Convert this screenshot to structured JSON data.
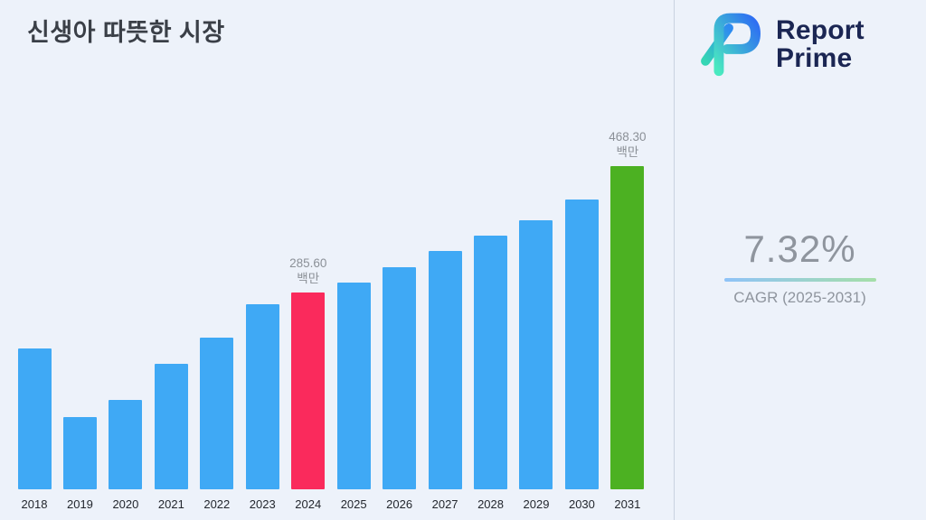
{
  "header": {
    "title": "신생아 따뜻한 시장"
  },
  "logo": {
    "line1": "Report",
    "line2": "Prime"
  },
  "stats": {
    "value": "7.32%",
    "label": "CAGR (2025-2031)"
  },
  "colors": {
    "background": "#edf2fa",
    "bar_blue": "#3fa9f5",
    "bar_pink": "#fa2a5c",
    "bar_green": "#4cb122",
    "underline_from": "#8fc3f8",
    "underline_to": "#a5dfa8",
    "divider": "#c9d2e0",
    "logo_navy": "#1b2653",
    "logo_teal": "#49e9c0",
    "logo_blue": "#2d6bf4"
  },
  "chart_data": {
    "type": "bar",
    "title": "신생아 따뜻한 시장",
    "categories": [
      "2018",
      "2019",
      "2020",
      "2021",
      "2022",
      "2023",
      "2024",
      "2025",
      "2026",
      "2027",
      "2028",
      "2029",
      "2030",
      "2031"
    ],
    "values": [
      204,
      105,
      130,
      182,
      220,
      268,
      285.6,
      300,
      322,
      345,
      368,
      390,
      420,
      468.3
    ],
    "unit_label": "백만",
    "xlabel": "",
    "ylabel": "",
    "ylim": [
      0,
      500
    ],
    "grid": false,
    "legend": "none",
    "bar_color_default": "#3fa9f5",
    "highlights": {
      "2024": "#fa2a5c",
      "2031": "#4cb122"
    },
    "annotations": [
      {
        "category": "2024",
        "value_label": "285.60",
        "unit": "백만"
      },
      {
        "category": "2031",
        "value_label": "468.30",
        "unit": "백만"
      }
    ]
  }
}
